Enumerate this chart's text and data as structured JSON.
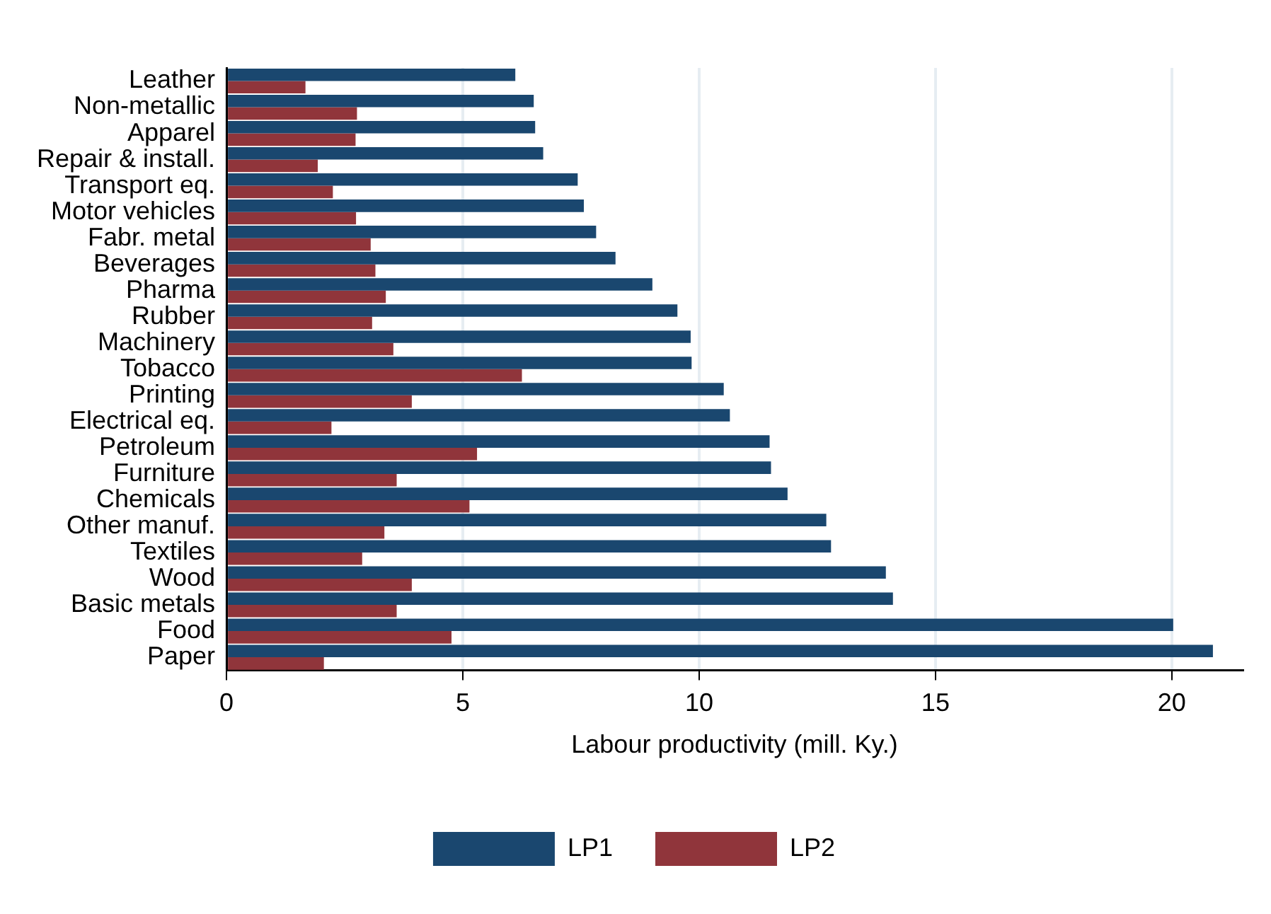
{
  "chart_data": {
    "type": "bar",
    "orientation": "horizontal",
    "xlabel": "Labour productivity (mill. Ky.)",
    "categories": [
      "Leather",
      "Non-metallic",
      "Apparel",
      "Repair & install.",
      "Transport eq.",
      "Motor vehicles",
      "Fabr. metal",
      "Beverages",
      "Pharma",
      "Rubber",
      "Machinery",
      "Tobacco",
      "Printing",
      "Electrical eq.",
      "Petroleum",
      "Furniture",
      "Chemicals",
      "Other manuf.",
      "Textiles",
      "Wood",
      "Basic metals",
      "Food",
      "Paper"
    ],
    "series": [
      {
        "name": "LP1",
        "color": "#1a476f",
        "values": [
          6.11,
          6.5,
          6.53,
          6.7,
          7.43,
          7.56,
          7.82,
          8.23,
          9.01,
          9.54,
          9.82,
          9.84,
          10.52,
          10.65,
          11.49,
          11.52,
          11.87,
          12.69,
          12.79,
          13.95,
          14.1,
          20.03,
          20.87
        ]
      },
      {
        "name": "LP2",
        "color": "#90353b",
        "values": [
          1.67,
          2.76,
          2.73,
          1.93,
          2.25,
          2.74,
          3.05,
          3.15,
          3.37,
          3.08,
          3.53,
          6.25,
          3.92,
          2.22,
          5.3,
          3.6,
          5.14,
          3.34,
          2.87,
          3.92,
          3.6,
          4.76,
          2.06
        ]
      }
    ],
    "xlim": [
      0,
      21.5
    ],
    "xticks": [
      0,
      5,
      10,
      15,
      20
    ],
    "grid": "x",
    "legend": "bottom"
  }
}
